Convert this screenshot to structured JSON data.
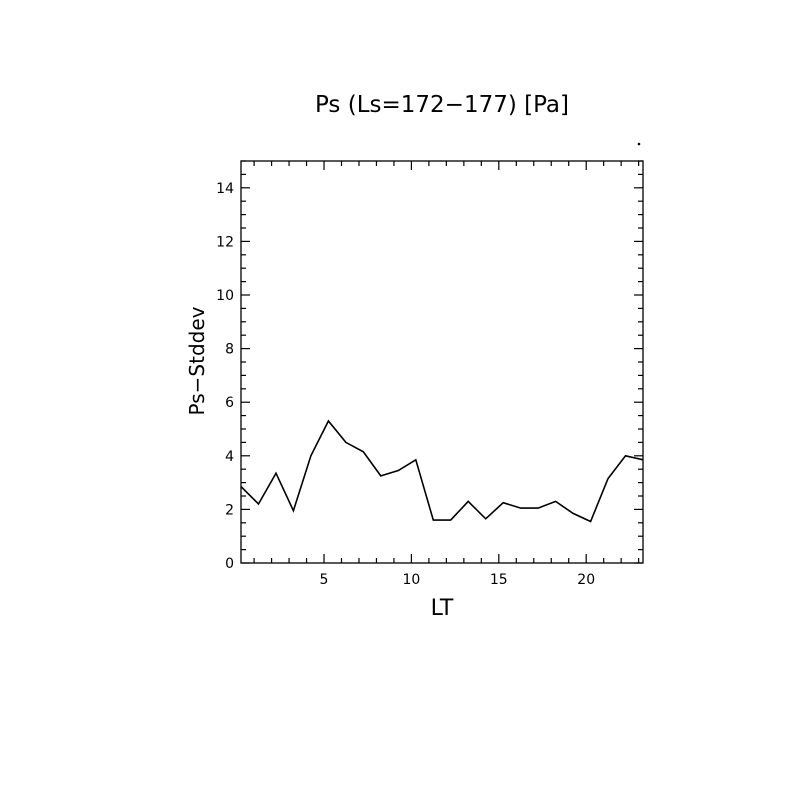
{
  "chart_data": {
    "type": "line",
    "title": "Ps (Ls=172−177) [Pa]",
    "xlabel": "LT",
    "ylabel": "Ps−Stddev",
    "xlim": [
      0.25,
      23.25
    ],
    "ylim": [
      0,
      15
    ],
    "xticks": [
      5,
      10,
      15,
      20
    ],
    "xtick_labels": [
      "5",
      "10",
      "15",
      "20"
    ],
    "yticks": [
      0,
      2,
      4,
      6,
      8,
      10,
      12,
      14
    ],
    "ytick_labels": [
      "0",
      "2",
      "4",
      "6",
      "8",
      "10",
      "12",
      "14"
    ],
    "grid": false,
    "line_color": "#000000",
    "series": [
      {
        "x": [
          0.25,
          1.25,
          2.25,
          3.25,
          4.25,
          5.25,
          6.25,
          7.25,
          8.25,
          9.25,
          10.25,
          11.25,
          12.25,
          13.25,
          14.25,
          15.25,
          16.25,
          17.25,
          18.25,
          19.25,
          20.25,
          21.25,
          22.25,
          23.25
        ],
        "y": [
          2.85,
          2.2,
          3.35,
          1.95,
          4.0,
          5.3,
          4.5,
          4.15,
          3.25,
          3.45,
          3.85,
          1.6,
          1.6,
          2.3,
          1.65,
          2.25,
          2.05,
          2.05,
          2.3,
          1.85,
          1.55,
          3.15,
          4.0,
          3.85
        ]
      }
    ]
  }
}
